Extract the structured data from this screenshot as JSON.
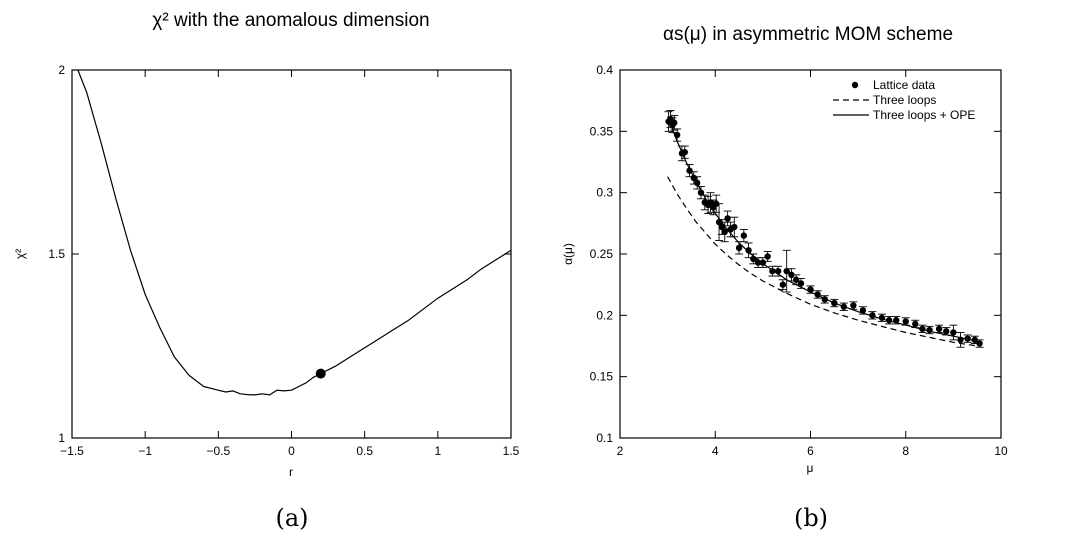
{
  "chart_data": [
    {
      "type": "line",
      "title": "χ² with the anomalous dimension",
      "xlabel": "r",
      "ylabel": "χ²",
      "xlim": [
        -1.5,
        1.5
      ],
      "ylim": [
        1,
        2
      ],
      "xticks": [
        -1.5,
        -1,
        -0.5,
        0,
        0.5,
        1,
        1.5
      ],
      "xtick_labels": [
        "−1.5",
        "−1",
        "−0.5",
        "0",
        "0.5",
        "1",
        "1.5"
      ],
      "yticks": [
        1,
        1.5,
        2
      ],
      "ytick_labels": [
        "1",
        "1.5",
        "2"
      ],
      "grid": false,
      "caption": "(a)",
      "series": [
        {
          "style": "solid",
          "x": [
            -1.46,
            -1.4,
            -1.3,
            -1.2,
            -1.1,
            -1.0,
            -0.9,
            -0.8,
            -0.7,
            -0.6,
            -0.5,
            -0.45,
            -0.4,
            -0.35,
            -0.3,
            -0.25,
            -0.2,
            -0.15,
            -0.1,
            -0.05,
            0.0,
            0.05,
            0.1,
            0.15,
            0.2,
            0.3,
            0.4,
            0.5,
            0.6,
            0.7,
            0.8,
            0.9,
            1.0,
            1.1,
            1.2,
            1.3,
            1.4,
            1.5
          ],
          "y": [
            2.0,
            1.94,
            1.8,
            1.65,
            1.51,
            1.39,
            1.3,
            1.22,
            1.17,
            1.14,
            1.13,
            1.125,
            1.128,
            1.12,
            1.118,
            1.117,
            1.12,
            1.117,
            1.13,
            1.128,
            1.13,
            1.14,
            1.15,
            1.165,
            1.175,
            1.195,
            1.22,
            1.245,
            1.27,
            1.295,
            1.32,
            1.35,
            1.38,
            1.405,
            1.43,
            1.46,
            1.485,
            1.51
          ]
        }
      ],
      "marker": {
        "x": 0.2,
        "y": 1.175
      }
    },
    {
      "type": "scatter",
      "title": "αs(μ) in asymmetric MOM scheme",
      "xlabel": "μ",
      "ylabel": "α(μ)",
      "xlim": [
        2,
        10
      ],
      "ylim": [
        0.1,
        0.4
      ],
      "xticks": [
        2,
        4,
        6,
        8,
        10
      ],
      "xtick_labels": [
        "2",
        "4",
        "6",
        "8",
        "10"
      ],
      "yticks": [
        0.1,
        0.15,
        0.2,
        0.25,
        0.3,
        0.35,
        0.4
      ],
      "ytick_labels": [
        "0.1",
        "0.15",
        "0.2",
        "0.25",
        "0.3",
        "0.35",
        "0.4"
      ],
      "grid": false,
      "legend_position": "top-right",
      "caption": "(b)",
      "series": [
        {
          "name": "Lattice data",
          "style": "points",
          "x": [
            3.02,
            3.06,
            3.1,
            3.14,
            3.2,
            3.3,
            3.36,
            3.46,
            3.55,
            3.62,
            3.7,
            3.78,
            3.85,
            3.9,
            3.96,
            4.02,
            4.08,
            4.14,
            4.2,
            4.26,
            4.32,
            4.4,
            4.5,
            4.6,
            4.7,
            4.8,
            4.9,
            5.0,
            5.1,
            5.2,
            5.32,
            5.42,
            5.5,
            5.6,
            5.7,
            5.8,
            6.0,
            6.15,
            6.3,
            6.5,
            6.7,
            6.9,
            7.1,
            7.3,
            7.5,
            7.65,
            7.8,
            8.0,
            8.2,
            8.35,
            8.5,
            8.7,
            8.85,
            9.0,
            9.15,
            9.3,
            9.45,
            9.55
          ],
          "y": [
            0.358,
            0.36,
            0.355,
            0.357,
            0.347,
            0.332,
            0.333,
            0.318,
            0.312,
            0.308,
            0.3,
            0.292,
            0.29,
            0.292,
            0.288,
            0.291,
            0.276,
            0.272,
            0.268,
            0.279,
            0.27,
            0.272,
            0.255,
            0.265,
            0.253,
            0.246,
            0.243,
            0.243,
            0.248,
            0.236,
            0.236,
            0.225,
            0.236,
            0.233,
            0.229,
            0.226,
            0.221,
            0.217,
            0.213,
            0.21,
            0.207,
            0.208,
            0.204,
            0.2,
            0.198,
            0.196,
            0.196,
            0.195,
            0.193,
            0.189,
            0.188,
            0.189,
            0.187,
            0.186,
            0.18,
            0.181,
            0.18,
            0.177
          ],
          "err": [
            0.008,
            0.007,
            0.006,
            0.006,
            0.005,
            0.006,
            0.005,
            0.005,
            0.005,
            0.005,
            0.005,
            0.006,
            0.007,
            0.008,
            0.006,
            0.007,
            0.015,
            0.006,
            0.008,
            0.006,
            0.006,
            0.008,
            0.005,
            0.005,
            0.006,
            0.004,
            0.004,
            0.004,
            0.004,
            0.004,
            0.004,
            0.004,
            0.017,
            0.005,
            0.004,
            0.004,
            0.003,
            0.003,
            0.003,
            0.003,
            0.003,
            0.003,
            0.003,
            0.003,
            0.003,
            0.003,
            0.003,
            0.003,
            0.003,
            0.003,
            0.003,
            0.003,
            0.003,
            0.006,
            0.006,
            0.003,
            0.003,
            0.003
          ]
        },
        {
          "name": "Three loops",
          "style": "dashed",
          "x": [
            3.0,
            3.2,
            3.4,
            3.6,
            3.8,
            4.0,
            4.25,
            4.5,
            4.75,
            5.0,
            5.5,
            6.0,
            6.5,
            7.0,
            7.5,
            8.0,
            8.5,
            9.0,
            9.5
          ],
          "y": [
            0.313,
            0.299,
            0.287,
            0.276,
            0.267,
            0.258,
            0.249,
            0.241,
            0.234,
            0.228,
            0.218,
            0.209,
            0.202,
            0.196,
            0.191,
            0.186,
            0.182,
            0.178,
            0.175
          ]
        },
        {
          "name": "Three loops + OPE",
          "style": "solid",
          "x": [
            3.0,
            3.2,
            3.4,
            3.6,
            3.8,
            4.0,
            4.25,
            4.5,
            4.75,
            5.0,
            5.5,
            6.0,
            6.5,
            7.0,
            7.5,
            8.0,
            8.5,
            9.0,
            9.5
          ],
          "y": [
            0.362,
            0.342,
            0.324,
            0.309,
            0.295,
            0.283,
            0.27,
            0.259,
            0.25,
            0.242,
            0.229,
            0.219,
            0.21,
            0.203,
            0.197,
            0.192,
            0.187,
            0.183,
            0.179
          ]
        }
      ]
    }
  ]
}
